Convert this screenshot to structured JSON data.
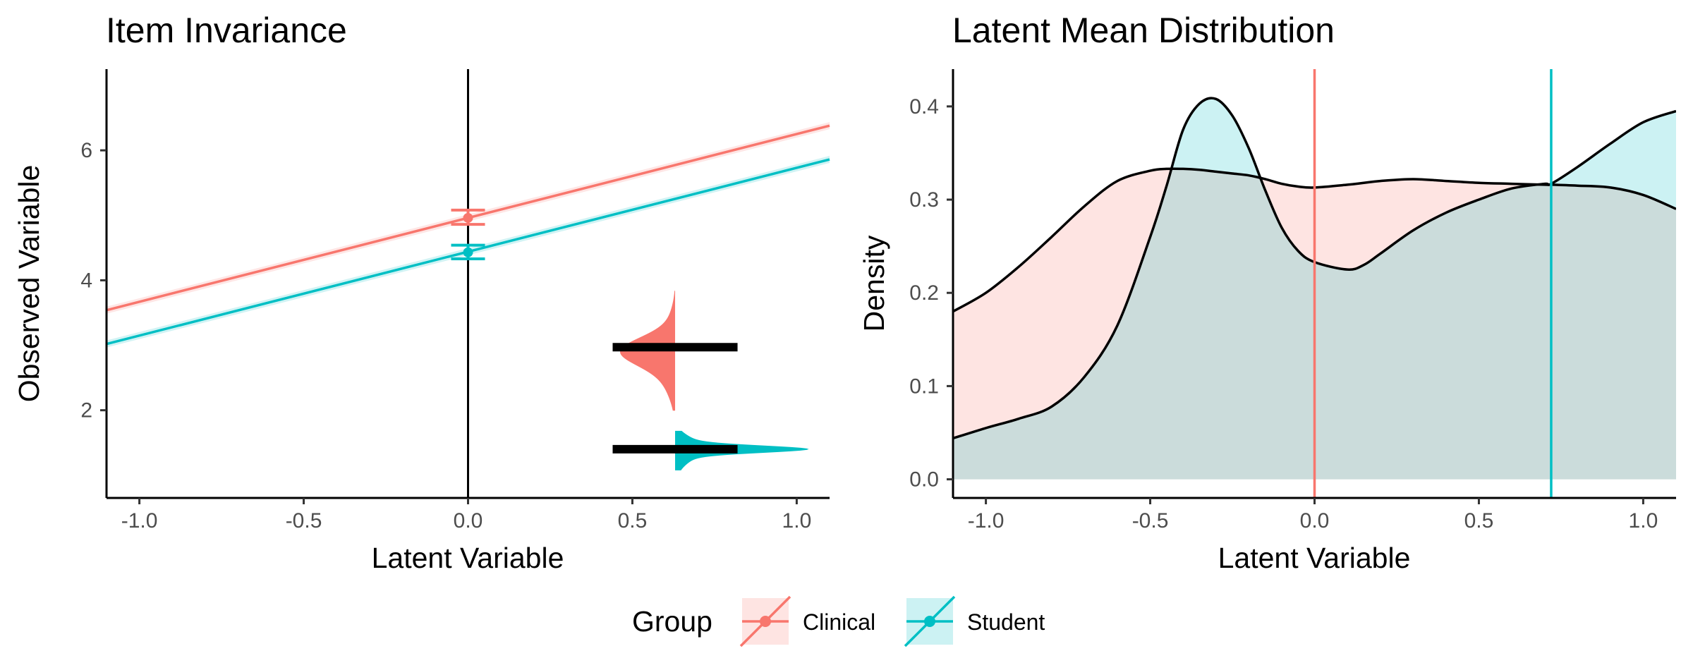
{
  "chart_data": [
    {
      "type": "line",
      "title": "Item Invariance",
      "xlabel": "Latent Variable",
      "ylabel": "Observed Variable",
      "xlim": [
        -1.1,
        1.1
      ],
      "ylim": [
        0.65,
        7.25
      ],
      "xticks": [
        -1.0,
        -0.5,
        0.0,
        0.5,
        1.0
      ],
      "xtick_labels": [
        "-1.0",
        "-0.5",
        "0.0",
        "0.5",
        "1.0"
      ],
      "yticks": [
        2,
        4,
        6
      ],
      "ytick_labels": [
        "2",
        "4",
        "6"
      ],
      "vline_x": 0.0,
      "series": [
        {
          "name": "Clinical",
          "color": "#F8766D",
          "line": {
            "x": [
              -1.1,
              1.1
            ],
            "y": [
              3.54,
              6.38
            ]
          },
          "intercept_point": {
            "x": 0.0,
            "y": 4.96,
            "err_low": 4.86,
            "err_high": 5.08
          },
          "distribution": {
            "y": 2.97,
            "x_range": [
              0.44,
              0.82
            ],
            "density_peak_x": 0.63
          }
        },
        {
          "name": "Student",
          "color": "#00BFC4",
          "line": {
            "x": [
              -1.1,
              1.1
            ],
            "y": [
              3.02,
              5.86
            ]
          },
          "intercept_point": {
            "x": 0.0,
            "y": 4.43,
            "err_low": 4.33,
            "err_high": 4.54
          },
          "distribution": {
            "y": 1.4,
            "x_range": [
              0.44,
              0.82
            ],
            "density_peak_x": 0.63
          }
        }
      ],
      "grid": false
    },
    {
      "type": "area",
      "title": "Latent Mean Distribution",
      "xlabel": "Latent Variable",
      "ylabel": "Density",
      "xlim": [
        -1.1,
        1.1
      ],
      "ylim": [
        -0.02,
        0.44
      ],
      "xticks": [
        -1.0,
        -0.5,
        0.0,
        0.5,
        1.0
      ],
      "xtick_labels": [
        "-1.0",
        "-0.5",
        "0.0",
        "0.5",
        "1.0"
      ],
      "yticks": [
        0.0,
        0.1,
        0.2,
        0.3,
        0.4
      ],
      "ytick_labels": [
        "0.0",
        "0.1",
        "0.2",
        "0.3",
        "0.4"
      ],
      "x": [
        -1.1,
        -1.0,
        -0.9,
        -0.8,
        -0.7,
        -0.6,
        -0.5,
        -0.45,
        -0.4,
        -0.35,
        -0.3,
        -0.25,
        -0.2,
        -0.15,
        -0.1,
        -0.05,
        0.0,
        0.1,
        0.15,
        0.2,
        0.3,
        0.4,
        0.5,
        0.6,
        0.7,
        0.72,
        0.8,
        0.9,
        1.0,
        1.1
      ],
      "series": [
        {
          "name": "Clinical",
          "color": "#F8766D",
          "mean_line_x": 0.0,
          "values": [
            0.18,
            0.2,
            0.228,
            0.26,
            0.293,
            0.32,
            0.331,
            0.333,
            0.333,
            0.332,
            0.33,
            0.328,
            0.326,
            0.322,
            0.317,
            0.314,
            0.313,
            0.316,
            0.318,
            0.32,
            0.322,
            0.32,
            0.318,
            0.317,
            0.316,
            0.316,
            0.315,
            0.313,
            0.305,
            0.29
          ]
        },
        {
          "name": "Student",
          "color": "#00BFC4",
          "mean_line_x": 0.72,
          "values": [
            0.044,
            0.055,
            0.065,
            0.078,
            0.11,
            0.165,
            0.26,
            0.315,
            0.375,
            0.403,
            0.408,
            0.39,
            0.355,
            0.31,
            0.27,
            0.245,
            0.233,
            0.225,
            0.23,
            0.242,
            0.267,
            0.286,
            0.3,
            0.312,
            0.317,
            0.317,
            0.335,
            0.36,
            0.383,
            0.395
          ]
        }
      ],
      "grid": false
    }
  ],
  "legend": {
    "title": "Group",
    "items": [
      {
        "label": "Clinical",
        "color": "#F8766D"
      },
      {
        "label": "Student",
        "color": "#00BFC4"
      }
    ],
    "position": "bottom"
  }
}
